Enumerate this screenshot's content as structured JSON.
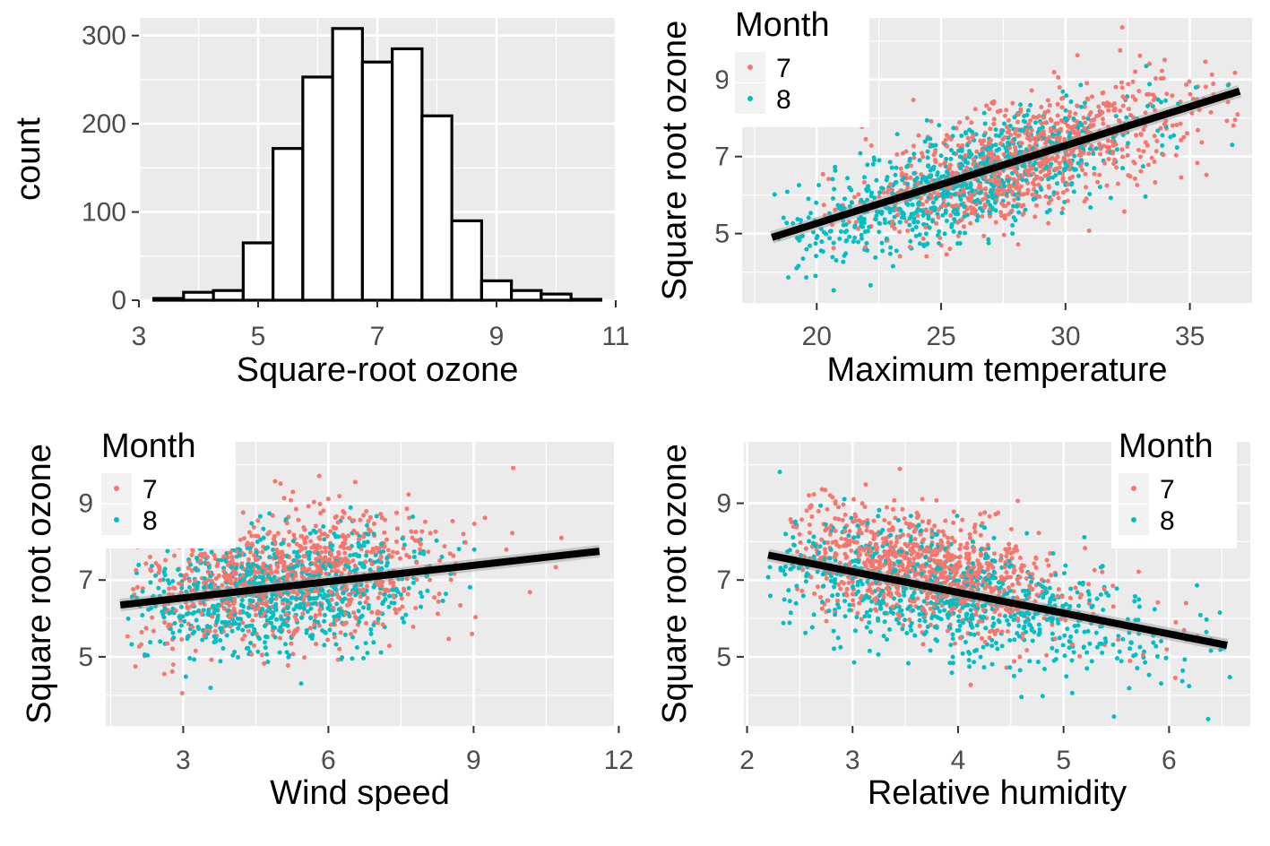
{
  "colors": {
    "panel_bg": "#ebebeb",
    "grid": "#ffffff",
    "month7": "#f8766d",
    "month8": "#00bfc4",
    "fit_line": "#000000",
    "bar_fill": "#ffffff",
    "bar_stroke": "#000000"
  },
  "chart_data": [
    {
      "type": "bar",
      "subtype": "histogram",
      "xlabel": "Square-root ozone",
      "ylabel": "count",
      "xlim": [
        3,
        11
      ],
      "ylim": [
        0,
        320
      ],
      "x_ticks": [
        "3",
        "5",
        "7",
        "9",
        "11"
      ],
      "y_ticks": [
        "0",
        "100",
        "200",
        "300"
      ],
      "bin_width": 0.5,
      "bin_left_edges": [
        3.25,
        3.75,
        4.25,
        4.75,
        5.25,
        5.75,
        6.25,
        6.75,
        7.25,
        7.75,
        8.25,
        8.75,
        9.25,
        9.75,
        10.25
      ],
      "values": [
        2,
        9,
        11,
        65,
        172,
        253,
        308,
        270,
        285,
        209,
        90,
        22,
        11,
        7,
        1
      ],
      "grid": true
    },
    {
      "type": "scatter",
      "xlabel": "Maximum temperature",
      "ylabel": "Square root ozone",
      "xlim": [
        17,
        37.5
      ],
      "ylim": [
        3.2,
        10.6
      ],
      "x_ticks": [
        "20",
        "25",
        "30",
        "35"
      ],
      "y_ticks": [
        "5",
        "7",
        "9"
      ],
      "legend": {
        "title": "Month",
        "entries": [
          "7",
          "8"
        ],
        "position": "top-left"
      },
      "fit_line": {
        "x": [
          18.2,
          37
        ],
        "y": [
          4.9,
          8.7
        ]
      },
      "series": [
        {
          "name": "7",
          "n": 900,
          "x_range": [
            20,
            37
          ],
          "x_mean": 28.6,
          "x_sd": 3.2,
          "slope": 0.2,
          "intercept": 1.25,
          "y_sd": 0.75
        },
        {
          "name": "8",
          "n": 800,
          "x_range": [
            18.3,
            37
          ],
          "x_mean": 25.6,
          "x_sd": 3.6,
          "slope": 0.2,
          "intercept": 1.1,
          "y_sd": 0.7
        }
      ],
      "grid": true
    },
    {
      "type": "scatter",
      "xlabel": "Wind speed",
      "ylabel": "Square root ozone",
      "xlim": [
        1.4,
        11.9
      ],
      "ylim": [
        3.2,
        10.6
      ],
      "x_ticks": [
        "3",
        "6",
        "9",
        "12"
      ],
      "y_ticks": [
        "5",
        "7",
        "9"
      ],
      "legend": {
        "title": "Month",
        "entries": [
          "7",
          "8"
        ],
        "position": "top-left"
      },
      "fit_line": {
        "x": [
          1.7,
          11.6
        ],
        "y": [
          6.35,
          7.75
        ]
      },
      "series": [
        {
          "name": "7",
          "n": 900,
          "x_range": [
            1.8,
            11.6
          ],
          "x_mean": 5.2,
          "x_sd": 1.6,
          "slope": 0.14,
          "intercept": 6.35,
          "y_sd": 0.85
        },
        {
          "name": "8",
          "n": 800,
          "x_range": [
            1.8,
            9.3
          ],
          "x_mean": 5.0,
          "x_sd": 1.5,
          "slope": 0.14,
          "intercept": 5.95,
          "y_sd": 0.8
        }
      ],
      "grid": true
    },
    {
      "type": "scatter",
      "xlabel": "Relative humidity",
      "ylabel": "Square root ozone",
      "xlim": [
        1.97,
        6.77
      ],
      "ylim": [
        3.2,
        10.6
      ],
      "x_ticks": [
        "2",
        "3",
        "4",
        "5",
        "6"
      ],
      "y_ticks": [
        "5",
        "7",
        "9"
      ],
      "legend": {
        "title": "Month",
        "entries": [
          "7",
          "8"
        ],
        "position": "top-right"
      },
      "fit_line": {
        "x": [
          2.2,
          6.55
        ],
        "y": [
          7.65,
          5.3
        ]
      },
      "series": [
        {
          "name": "7",
          "n": 900,
          "x_range": [
            2.4,
            6.3
          ],
          "x_mean": 3.7,
          "x_sd": 0.7,
          "slope": -0.55,
          "intercept": 9.3,
          "y_sd": 0.75
        },
        {
          "name": "8",
          "n": 800,
          "x_range": [
            2.2,
            6.6
          ],
          "x_mean": 3.8,
          "x_sd": 1.0,
          "slope": -0.55,
          "intercept": 8.8,
          "y_sd": 0.8
        }
      ],
      "grid": true
    }
  ]
}
